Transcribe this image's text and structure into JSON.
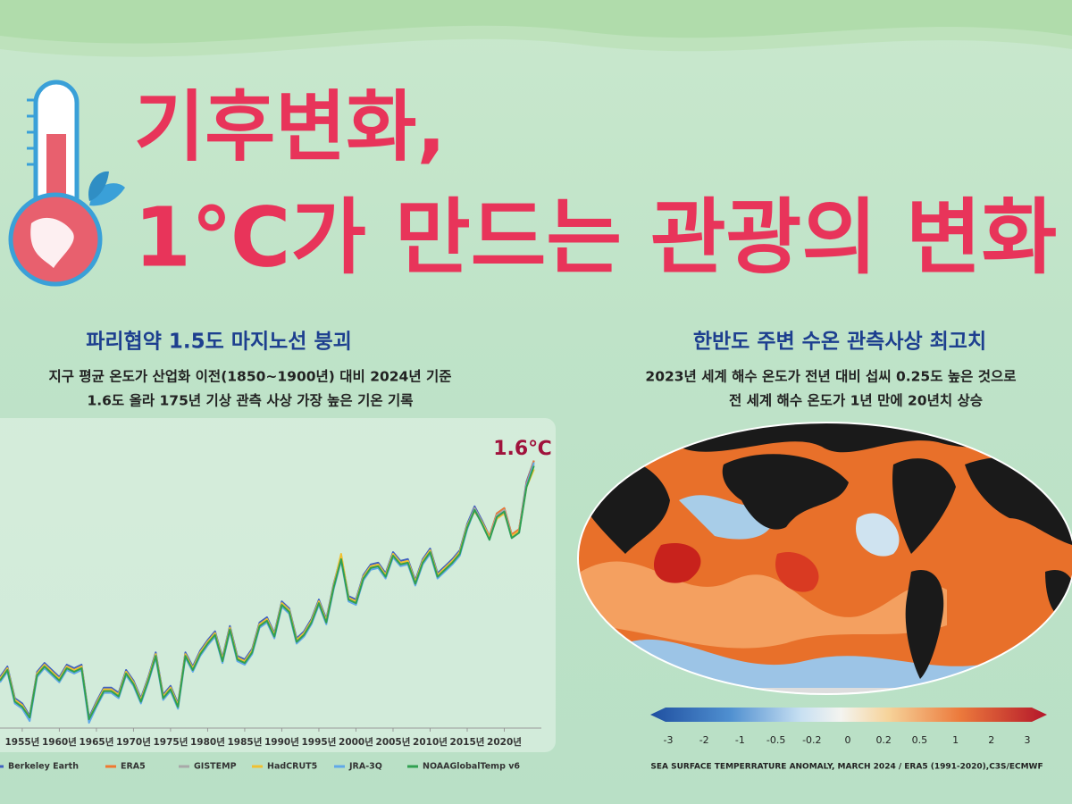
{
  "header": {
    "title_line_1": "기후변화,",
    "title_line_2": "1℃가 만드는 관광의 변화"
  },
  "left_panel": {
    "heading": "파리협약 1.5도 마지노선 붕괴",
    "lines": [
      "지구 평균 온도가 산업화 이전(1850~1900년) 대비 2024년 기준",
      "1.6도 올라 175년 기상 관측 사상 가장 높은 기온 기록"
    ]
  },
  "right_panel": {
    "heading": "한반도 주변 수온 관측사상 최고치",
    "lines": [
      "2023년 세계 해수 온도가 전년 대비 섭씨 0.25도 높은 것으로",
      "전 세계 해수 온도가 1년 만에 20년치 상승"
    ],
    "caption": "SEA SURFACE TEMPERRATURE ANOMALY, MARCH 2024 / ERA5 (1991-2020),C3S/ECMWF",
    "colorbar_labels": [
      "-3",
      "-2",
      "-1",
      "-0.5",
      "-0.2",
      "0",
      "0.2",
      "0.5",
      "1",
      "2",
      "3"
    ]
  },
  "chart_data": {
    "type": "line",
    "annotation": "1.6℃",
    "x": [
      1952,
      1953,
      1954,
      1955,
      1956,
      1957,
      1958,
      1959,
      1960,
      1961,
      1962,
      1963,
      1964,
      1965,
      1966,
      1967,
      1968,
      1969,
      1970,
      1971,
      1972,
      1973,
      1974,
      1975,
      1976,
      1977,
      1978,
      1979,
      1980,
      1981,
      1982,
      1983,
      1984,
      1985,
      1986,
      1987,
      1988,
      1989,
      1990,
      1991,
      1992,
      1993,
      1994,
      1995,
      1996,
      1997,
      1998,
      1999,
      2000,
      2001,
      2002,
      2003,
      2004,
      2005,
      2006,
      2007,
      2008,
      2009,
      2010,
      2011,
      2012,
      2013,
      2014,
      2015,
      2016,
      2017,
      2018,
      2019,
      2020,
      2021,
      2022,
      2023,
      2024
    ],
    "xlim": [
      1952,
      2025
    ],
    "ylim": [
      0.08,
      1.73
    ],
    "xticks": [
      {
        "value": 1955,
        "label": "1955년"
      },
      {
        "value": 1960,
        "label": "1960년"
      },
      {
        "value": 1965,
        "label": "1965년"
      },
      {
        "value": 1970,
        "label": "1970년"
      },
      {
        "value": 1975,
        "label": "1975년"
      },
      {
        "value": 1980,
        "label": "1980년"
      },
      {
        "value": 1985,
        "label": "1985년"
      },
      {
        "value": 1990,
        "label": "1990년"
      },
      {
        "value": 1995,
        "label": "1995년"
      },
      {
        "value": 2000,
        "label": "2000년"
      },
      {
        "value": 2005,
        "label": "2005년"
      },
      {
        "value": 2010,
        "label": "2010년"
      },
      {
        "value": 2015,
        "label": "2015년"
      },
      {
        "value": 2020,
        "label": "2020년"
      }
    ],
    "series": [
      {
        "name": "Berkeley Earth",
        "color": "#4060c0",
        "values": [
          0.37,
          0.43,
          0.25,
          0.22,
          0.15,
          0.4,
          0.45,
          0.41,
          0.37,
          0.44,
          0.42,
          0.44,
          0.14,
          0.23,
          0.31,
          0.31,
          0.28,
          0.41,
          0.35,
          0.25,
          0.37,
          0.51,
          0.27,
          0.32,
          0.22,
          0.51,
          0.43,
          0.52,
          0.58,
          0.63,
          0.48,
          0.66,
          0.49,
          0.47,
          0.53,
          0.68,
          0.71,
          0.62,
          0.8,
          0.76,
          0.59,
          0.63,
          0.7,
          0.81,
          0.7,
          0.9,
          1.06,
          0.83,
          0.81,
          0.95,
          1.01,
          1.02,
          0.96,
          1.08,
          1.03,
          1.04,
          0.92,
          1.04,
          1.1,
          0.96,
          1.0,
          1.04,
          1.09,
          1.24,
          1.34,
          1.26,
          1.17,
          1.3,
          1.33,
          1.18,
          1.21,
          1.48,
          1.6
        ]
      },
      {
        "name": "ERA5",
        "color": "#f07830",
        "values": [
          0.35,
          0.41,
          0.23,
          0.2,
          0.13,
          0.38,
          0.43,
          0.39,
          0.35,
          0.42,
          0.4,
          0.42,
          0.12,
          0.21,
          0.29,
          0.29,
          0.26,
          0.39,
          0.33,
          0.23,
          0.35,
          0.49,
          0.25,
          0.3,
          0.2,
          0.49,
          0.41,
          0.5,
          0.56,
          0.61,
          0.46,
          0.64,
          0.47,
          0.45,
          0.51,
          0.66,
          0.69,
          0.6,
          0.78,
          0.74,
          0.57,
          0.61,
          0.68,
          0.79,
          0.68,
          0.88,
          1.04,
          0.81,
          0.79,
          0.93,
          0.99,
          1.0,
          0.94,
          1.06,
          1.01,
          1.02,
          0.9,
          1.02,
          1.08,
          0.94,
          0.98,
          1.02,
          1.07,
          1.22,
          1.33,
          1.25,
          1.17,
          1.3,
          1.33,
          1.18,
          1.21,
          1.47,
          1.6
        ]
      },
      {
        "name": "GISTEMP",
        "color": "#a8a8a8",
        "values": [
          0.36,
          0.42,
          0.24,
          0.21,
          0.14,
          0.39,
          0.44,
          0.4,
          0.36,
          0.43,
          0.41,
          0.43,
          0.13,
          0.22,
          0.3,
          0.3,
          0.27,
          0.4,
          0.34,
          0.24,
          0.36,
          0.5,
          0.26,
          0.31,
          0.21,
          0.5,
          0.42,
          0.51,
          0.57,
          0.62,
          0.47,
          0.65,
          0.48,
          0.46,
          0.52,
          0.67,
          0.7,
          0.61,
          0.79,
          0.75,
          0.58,
          0.62,
          0.69,
          0.8,
          0.69,
          0.89,
          1.05,
          0.82,
          0.8,
          0.94,
          1.0,
          1.01,
          0.95,
          1.07,
          1.02,
          1.03,
          0.91,
          1.03,
          1.09,
          0.95,
          0.99,
          1.03,
          1.08,
          1.23,
          1.33,
          1.25,
          1.16,
          1.29,
          1.32,
          1.17,
          1.2,
          1.46,
          1.58
        ]
      },
      {
        "name": "HadCRUT5",
        "color": "#f0c030",
        "values": [
          0.36,
          0.42,
          0.24,
          0.21,
          0.14,
          0.39,
          0.44,
          0.4,
          0.36,
          0.43,
          0.41,
          0.43,
          0.13,
          0.22,
          0.3,
          0.3,
          0.27,
          0.4,
          0.34,
          0.24,
          0.36,
          0.5,
          0.26,
          0.31,
          0.21,
          0.5,
          0.42,
          0.51,
          0.57,
          0.62,
          0.47,
          0.65,
          0.48,
          0.46,
          0.52,
          0.67,
          0.7,
          0.61,
          0.79,
          0.75,
          0.58,
          0.62,
          0.69,
          0.8,
          0.69,
          0.89,
          1.07,
          0.82,
          0.8,
          0.94,
          1.0,
          1.01,
          0.95,
          1.07,
          1.02,
          1.03,
          0.91,
          1.03,
          1.09,
          0.95,
          0.99,
          1.03,
          1.08,
          1.23,
          1.31,
          1.25,
          1.16,
          1.27,
          1.3,
          1.17,
          1.2,
          1.45,
          1.55
        ]
      },
      {
        "name": "JRA-3Q",
        "color": "#60a8e8",
        "values": [
          0.34,
          0.4,
          0.22,
          0.19,
          0.12,
          0.37,
          0.42,
          0.38,
          0.34,
          0.41,
          0.39,
          0.41,
          0.11,
          0.2,
          0.28,
          0.28,
          0.25,
          0.38,
          0.32,
          0.22,
          0.34,
          0.48,
          0.24,
          0.29,
          0.19,
          0.48,
          0.4,
          0.49,
          0.55,
          0.6,
          0.45,
          0.63,
          0.46,
          0.44,
          0.5,
          0.65,
          0.68,
          0.59,
          0.77,
          0.73,
          0.56,
          0.6,
          0.67,
          0.78,
          0.67,
          0.87,
          1.03,
          0.8,
          0.78,
          0.92,
          0.98,
          0.99,
          0.93,
          1.05,
          1.0,
          1.01,
          0.89,
          1.01,
          1.07,
          0.93,
          0.97,
          1.01,
          1.06,
          1.21,
          1.32,
          1.24,
          1.15,
          1.28,
          1.31,
          1.16,
          1.19,
          1.46,
          1.59
        ]
      },
      {
        "name": "NOAAGlobalTemp v6",
        "color": "#30a050",
        "values": [
          0.35,
          0.41,
          0.23,
          0.2,
          0.14,
          0.38,
          0.43,
          0.39,
          0.35,
          0.42,
          0.4,
          0.42,
          0.13,
          0.21,
          0.29,
          0.29,
          0.26,
          0.39,
          0.33,
          0.23,
          0.35,
          0.49,
          0.25,
          0.3,
          0.2,
          0.49,
          0.41,
          0.5,
          0.56,
          0.61,
          0.46,
          0.64,
          0.47,
          0.45,
          0.51,
          0.66,
          0.69,
          0.6,
          0.78,
          0.74,
          0.57,
          0.61,
          0.68,
          0.79,
          0.68,
          0.88,
          1.04,
          0.81,
          0.79,
          0.93,
          0.99,
          1.0,
          0.94,
          1.06,
          1.01,
          1.02,
          0.9,
          1.02,
          1.08,
          0.94,
          0.98,
          1.02,
          1.07,
          1.22,
          1.32,
          1.24,
          1.15,
          1.28,
          1.31,
          1.16,
          1.19,
          1.45,
          1.57
        ]
      }
    ]
  }
}
